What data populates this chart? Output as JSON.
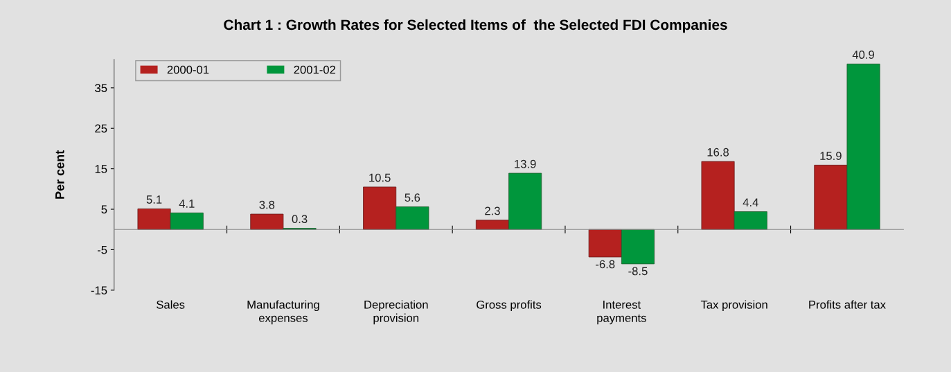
{
  "chart_data": {
    "type": "bar",
    "title": "Chart 1 : Growth Rates for Selected Items of  the Selected FDI Companies",
    "ylabel": "Per cent",
    "categories": [
      "Sales",
      "Manufacturing\nexpenses",
      "Depreciation\nprovision",
      "Gross profits",
      "Interest\npayments",
      "Tax provision",
      "Profits after tax"
    ],
    "series": [
      {
        "name": "2000-01",
        "color": "#b5211f",
        "values": [
          5.1,
          3.8,
          10.5,
          2.3,
          -6.8,
          16.8,
          15.9
        ]
      },
      {
        "name": "2001-02",
        "color": "#00963c",
        "values": [
          4.1,
          0.3,
          5.6,
          13.9,
          -8.5,
          4.4,
          40.9
        ]
      }
    ],
    "ylim": [
      -15,
      42
    ],
    "yticks": [
      -15,
      -5,
      5,
      15,
      25,
      35
    ],
    "data_labels": true,
    "legend": "top left",
    "grid": false
  }
}
